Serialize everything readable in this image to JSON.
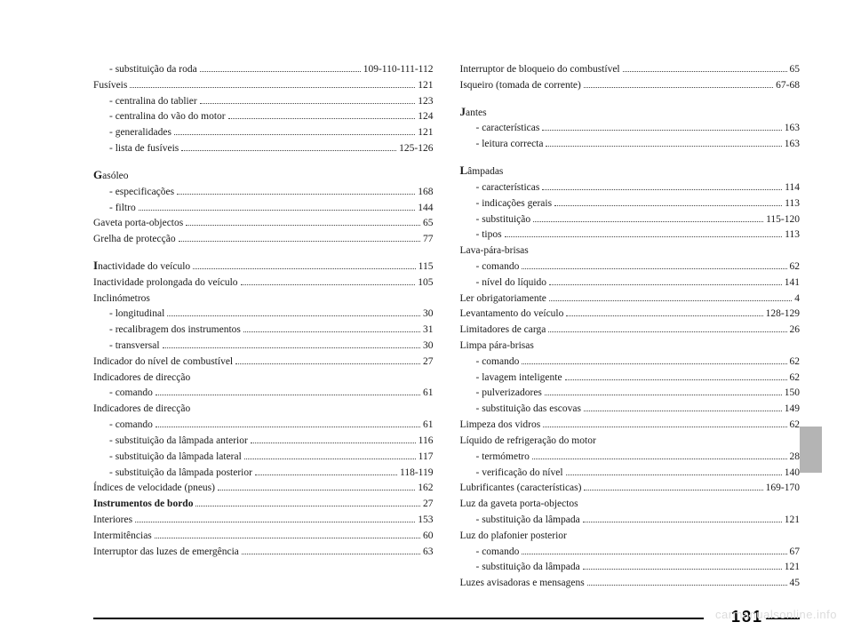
{
  "left": [
    {
      "sub": true,
      "label": "- substituição da roda",
      "pg": "109-110-111-112"
    },
    {
      "label": "Fusíveis",
      "pg": "121"
    },
    {
      "sub": true,
      "label": "- centralina do tablier",
      "pg": "123"
    },
    {
      "sub": true,
      "label": "- centralina do vão do motor",
      "pg": "124"
    },
    {
      "sub": true,
      "label": "- generalidades",
      "pg": "121"
    },
    {
      "sub": true,
      "label": "- lista de fusíveis",
      "pg": "125-126"
    },
    {
      "biggap": true
    },
    {
      "cap": "G",
      "label": "asóleo"
    },
    {
      "sub": true,
      "label": "- especificações",
      "pg": "168"
    },
    {
      "sub": true,
      "label": "- filtro",
      "pg": "144"
    },
    {
      "label": "Gaveta porta-objectos",
      "pg": "65"
    },
    {
      "label": "Grelha de protecção",
      "pg": "77"
    },
    {
      "biggap": true
    },
    {
      "cap": "I",
      "label": "nactividade do veículo",
      "pg": "115"
    },
    {
      "label": "Inactividade prolongada do veículo",
      "pg": "105"
    },
    {
      "label": "Inclinómetros"
    },
    {
      "sub": true,
      "label": "- longitudinal",
      "pg": "30"
    },
    {
      "sub": true,
      "label": "- recalibragem dos instrumentos",
      "pg": "31"
    },
    {
      "sub": true,
      "label": "- transversal",
      "pg": "30"
    },
    {
      "label": "Indicador do nível de combustível",
      "pg": "27"
    },
    {
      "label": "Indicadores de direcção"
    },
    {
      "sub": true,
      "label": "- comando",
      "pg": "61"
    },
    {
      "label": "Indicadores de direcção"
    },
    {
      "sub": true,
      "label": "- comando",
      "pg": "61"
    },
    {
      "sub": true,
      "label": "- substituição da lâmpada anterior",
      "pg": "116"
    },
    {
      "sub": true,
      "label": "- substituição da lâmpada lateral",
      "pg": "117"
    },
    {
      "sub": true,
      "label": "- substituição da lâmpada posterior",
      "pg": "118-119"
    },
    {
      "label": "Índices de velocidade (pneus)",
      "pg": "162"
    },
    {
      "bold": true,
      "label": "Instrumentos de bordo",
      "pg": "27"
    },
    {
      "label": "Interiores",
      "pg": "153"
    },
    {
      "label": "Intermitências",
      "pg": "60"
    },
    {
      "label": "Interruptor das luzes de emergência",
      "pg": "63"
    }
  ],
  "right": [
    {
      "label": "Interruptor de bloqueio do combustível",
      "pg": "65"
    },
    {
      "label": "Isqueiro (tomada de corrente)",
      "pg": "67-68"
    },
    {
      "biggap": true
    },
    {
      "cap": "J",
      "label": "antes"
    },
    {
      "sub": true,
      "label": "- características",
      "pg": "163"
    },
    {
      "sub": true,
      "label": "- leitura correcta",
      "pg": "163"
    },
    {
      "biggap": true
    },
    {
      "cap": "L",
      "label": "âmpadas"
    },
    {
      "sub": true,
      "label": "- características",
      "pg": "114"
    },
    {
      "sub": true,
      "label": "- indicações gerais",
      "pg": "113"
    },
    {
      "sub": true,
      "label": "- substituição",
      "pg": "115-120"
    },
    {
      "sub": true,
      "label": "- tipos",
      "pg": "113"
    },
    {
      "label": "Lava-pára-brisas"
    },
    {
      "sub": true,
      "label": "- comando",
      "pg": "62"
    },
    {
      "sub": true,
      "label": "- nível do líquido",
      "pg": "141"
    },
    {
      "label": "Ler obrigatoriamente",
      "pg": "4"
    },
    {
      "label": "Levantamento do veículo",
      "pg": "128-129"
    },
    {
      "label": "Limitadores de carga",
      "pg": "26"
    },
    {
      "label": "Limpa pára-brisas"
    },
    {
      "sub": true,
      "label": "- comando",
      "pg": "62"
    },
    {
      "sub": true,
      "label": "- lavagem inteligente",
      "pg": "62"
    },
    {
      "sub": true,
      "label": "- pulverizadores",
      "pg": "150"
    },
    {
      "sub": true,
      "label": "- substituição das escovas",
      "pg": "149"
    },
    {
      "label": "Limpeza dos vidros",
      "pg": "62"
    },
    {
      "label": "Líquido de refrigeração do motor"
    },
    {
      "sub": true,
      "label": "- termómetro",
      "pg": "28"
    },
    {
      "sub": true,
      "label": "- verificação do nível",
      "pg": "140"
    },
    {
      "label": "Lubrificantes (características)",
      "pg": "169-170"
    },
    {
      "label": "Luz da gaveta porta-objectos"
    },
    {
      "sub": true,
      "label": "- substituição da lâmpada",
      "pg": "121"
    },
    {
      "label": "Luz do plafonier posterior"
    },
    {
      "sub": true,
      "label": "- comando",
      "pg": "67"
    },
    {
      "sub": true,
      "label": "- substituição da lâmpada",
      "pg": "121"
    },
    {
      "label": "Luzes avisadoras e mensagens",
      "pg": "45"
    }
  ],
  "pagenum": "181",
  "watermark": "carmanualsonline.info"
}
